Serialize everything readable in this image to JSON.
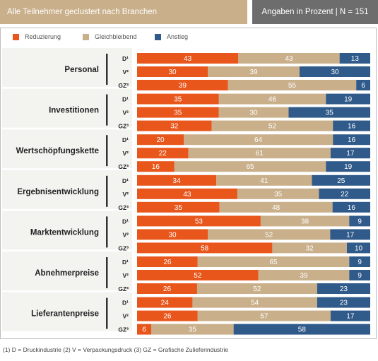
{
  "header": {
    "left_title": "Alle Teilnehmer geclustert nach Branchen",
    "right_title": "Angaben in Prozent | N = 151"
  },
  "colors": {
    "reduzierung": "#e8561b",
    "gleichbleibend": "#c9af8a",
    "anstieg": "#2f5a8a",
    "group_bg": "#f3f3f0"
  },
  "footnote": "(1) D = Druckindustrie  (2) V = Verpackungsdruck  (3) GZ = Grafische Zulieferindustrie",
  "chart_data": {
    "type": "bar",
    "orientation": "horizontal",
    "stacked": true,
    "legend_position": "top",
    "series_names": [
      "Reduzierung",
      "Gleichbleibend",
      "Anstieg"
    ],
    "row_labels": [
      "D¹",
      "V²",
      "GZ³"
    ],
    "xlim": [
      0,
      100
    ],
    "groups": [
      {
        "name": "Personal",
        "rows": [
          [
            43,
            43,
            13
          ],
          [
            30,
            39,
            30
          ],
          [
            39,
            55,
            6
          ]
        ]
      },
      {
        "name": "Investitionen",
        "rows": [
          [
            35,
            46,
            19
          ],
          [
            35,
            30,
            35
          ],
          [
            32,
            52,
            16
          ]
        ]
      },
      {
        "name": "Wertschöpfungskette",
        "rows": [
          [
            20,
            64,
            16
          ],
          [
            22,
            61,
            17
          ],
          [
            16,
            65,
            19
          ]
        ]
      },
      {
        "name": "Ergebnisentwicklung",
        "rows": [
          [
            34,
            41,
            25
          ],
          [
            43,
            35,
            22
          ],
          [
            35,
            48,
            16
          ]
        ]
      },
      {
        "name": "Marktentwicklung",
        "rows": [
          [
            53,
            38,
            9
          ],
          [
            30,
            52,
            17
          ],
          [
            58,
            32,
            10
          ]
        ]
      },
      {
        "name": "Abnehmerpreise",
        "rows": [
          [
            26,
            65,
            9
          ],
          [
            52,
            39,
            9
          ],
          [
            26,
            52,
            23
          ]
        ]
      },
      {
        "name": "Lieferantenpreise",
        "rows": [
          [
            24,
            54,
            23
          ],
          [
            26,
            57,
            17
          ],
          [
            6,
            35,
            58
          ]
        ]
      }
    ]
  }
}
